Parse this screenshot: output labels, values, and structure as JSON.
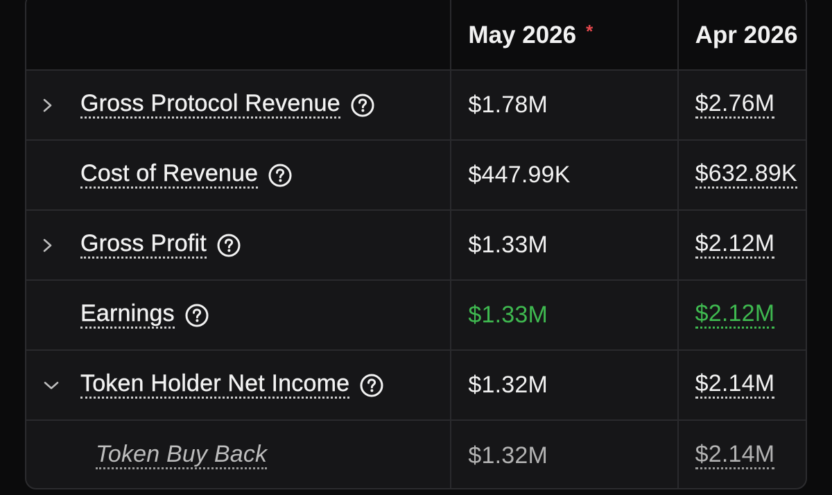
{
  "header": {
    "label": "",
    "col1": "May 2026",
    "col1_marker": "*",
    "col2": "Apr 2026"
  },
  "rows": [
    {
      "label": "Gross Protocol Revenue",
      "expander": "chevron-right",
      "may": "$1.78M",
      "apr": "$2.76M",
      "style": "normal"
    },
    {
      "label": "Cost of Revenue",
      "expander": "",
      "may": "$447.99K",
      "apr": "$632.89K",
      "style": "normal"
    },
    {
      "label": "Gross Profit",
      "expander": "chevron-right",
      "may": "$1.33M",
      "apr": "$2.12M",
      "style": "normal"
    },
    {
      "label": "Earnings",
      "expander": "",
      "may": "$1.33M",
      "apr": "$2.12M",
      "style": "green"
    },
    {
      "label": "Token Holder Net Income",
      "expander": "chevron-down",
      "may": "$1.32M",
      "apr": "$2.14M",
      "style": "normal"
    },
    {
      "label": "Token Buy Back",
      "expander": "",
      "may": "$1.32M",
      "apr": "$2.14M",
      "style": "muted-italic"
    }
  ],
  "colors": {
    "background": "#0b0b0c",
    "table": "#161618",
    "header": "#0c0c0d",
    "text": "#f2f2f2",
    "positive": "#3fb950",
    "marker": "#e5484d",
    "muted": "#b3b3b3"
  },
  "icons": {
    "help": "help-circle-icon",
    "expand": "chevron-right-icon",
    "collapse": "chevron-down-icon"
  }
}
